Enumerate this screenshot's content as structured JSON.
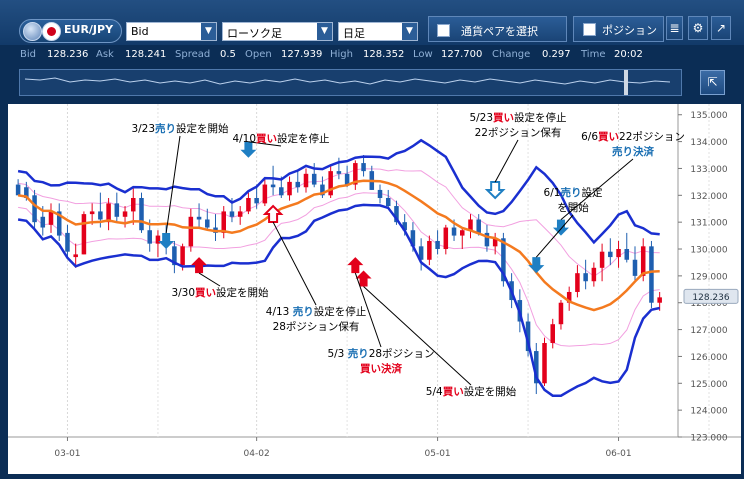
{
  "toolbar": {
    "pair": "EUR/JPY",
    "price_type": "Bid",
    "chart_kind": "ローソク足",
    "period": "日足",
    "select_pair_label": "通貨ペアを選択",
    "position_label": "ポジション"
  },
  "quotes": {
    "bid_label": "Bid",
    "bid": "128.236",
    "ask_label": "Ask",
    "ask": "128.241",
    "spread_label": "Spread",
    "spread": "0.5",
    "open_label": "Open",
    "open": "127.939",
    "high_label": "High",
    "high": "128.352",
    "low_label": "Low",
    "low": "127.700",
    "change_label": "Change",
    "change": "0.297",
    "time_label": "Time",
    "time": "20:02"
  },
  "chart_data": {
    "type": "candlestick",
    "y_ticks": [
      "135.000",
      "134.000",
      "133.000",
      "132.000",
      "131.000",
      "130.000",
      "129.000",
      "128.000",
      "127.000",
      "126.000",
      "125.000",
      "124.000",
      "123.000"
    ],
    "ylim": [
      123,
      135.4
    ],
    "x_ticks": [
      {
        "label": "03-01",
        "i": 6
      },
      {
        "label": "04-02",
        "i": 29
      },
      {
        "label": "05-01",
        "i": 51
      },
      {
        "label": "06-01",
        "i": 73
      }
    ],
    "current_price": "128.236",
    "candles": [
      [
        132.4,
        132.6,
        132.1,
        132.0
      ],
      [
        132.3,
        132.5,
        131.8,
        131.9
      ],
      [
        132.0,
        132.2,
        130.7,
        131.0
      ],
      [
        131.2,
        131.6,
        130.5,
        130.8
      ],
      [
        130.9,
        131.7,
        130.6,
        131.4
      ],
      [
        131.4,
        131.7,
        130.3,
        130.5
      ],
      [
        130.6,
        130.9,
        129.7,
        129.9
      ],
      [
        129.7,
        130.2,
        129.3,
        129.8
      ],
      [
        129.8,
        131.4,
        129.8,
        131.3
      ],
      [
        131.3,
        131.7,
        130.9,
        131.4
      ],
      [
        131.4,
        132.1,
        130.8,
        131.1
      ],
      [
        131.0,
        131.9,
        130.7,
        131.7
      ],
      [
        131.7,
        132.1,
        131.0,
        131.2
      ],
      [
        131.2,
        131.6,
        130.8,
        131.4
      ],
      [
        131.4,
        132.3,
        130.9,
        131.9
      ],
      [
        131.9,
        132.1,
        130.6,
        130.7
      ],
      [
        130.7,
        131.1,
        129.9,
        130.2
      ],
      [
        130.2,
        130.7,
        129.7,
        130.5
      ],
      [
        130.4,
        130.9,
        129.8,
        130.1
      ],
      [
        130.1,
        130.3,
        129.1,
        129.4
      ],
      [
        129.4,
        130.2,
        129.2,
        130.1
      ],
      [
        130.1,
        131.5,
        129.9,
        131.2
      ],
      [
        131.2,
        131.7,
        130.8,
        131.1
      ],
      [
        131.1,
        131.5,
        130.7,
        130.8
      ],
      [
        130.8,
        131.3,
        130.3,
        130.6
      ],
      [
        130.6,
        131.6,
        130.4,
        131.4
      ],
      [
        131.4,
        131.9,
        131.0,
        131.2
      ],
      [
        131.2,
        131.6,
        130.9,
        131.4
      ],
      [
        131.4,
        132.1,
        131.3,
        131.9
      ],
      [
        131.9,
        132.4,
        131.5,
        131.7
      ],
      [
        131.7,
        132.6,
        131.6,
        132.4
      ],
      [
        132.4,
        133.1,
        132.0,
        132.3
      ],
      [
        132.3,
        132.7,
        131.9,
        132.0
      ],
      [
        132.0,
        132.7,
        131.8,
        132.5
      ],
      [
        132.5,
        132.9,
        132.1,
        132.3
      ],
      [
        132.3,
        133.0,
        132.1,
        132.8
      ],
      [
        132.8,
        133.2,
        132.3,
        132.4
      ],
      [
        132.4,
        132.7,
        131.9,
        132.0
      ],
      [
        132.0,
        133.1,
        131.9,
        132.9
      ],
      [
        132.9,
        133.4,
        132.6,
        132.8
      ],
      [
        132.8,
        133.1,
        132.3,
        132.4
      ],
      [
        132.4,
        133.3,
        132.2,
        133.2
      ],
      [
        133.2,
        133.5,
        132.7,
        132.9
      ],
      [
        132.9,
        133.1,
        132.2,
        132.2
      ],
      [
        132.2,
        132.4,
        131.7,
        131.9
      ],
      [
        131.9,
        132.2,
        131.5,
        131.6
      ],
      [
        131.6,
        131.8,
        130.9,
        131.0
      ],
      [
        131.0,
        131.3,
        130.5,
        130.7
      ],
      [
        130.7,
        131.0,
        129.9,
        130.1
      ],
      [
        130.1,
        130.4,
        129.2,
        129.6
      ],
      [
        129.6,
        130.5,
        129.4,
        130.3
      ],
      [
        130.3,
        130.7,
        129.8,
        130.0
      ],
      [
        130.0,
        130.9,
        129.8,
        130.8
      ],
      [
        130.8,
        131.1,
        130.3,
        130.5
      ],
      [
        130.5,
        130.8,
        130.0,
        130.7
      ],
      [
        130.7,
        131.3,
        130.4,
        131.1
      ],
      [
        131.1,
        131.3,
        130.5,
        130.6
      ],
      [
        130.6,
        130.9,
        129.9,
        130.1
      ],
      [
        130.1,
        130.6,
        129.8,
        130.4
      ],
      [
        130.4,
        130.6,
        128.6,
        128.8
      ],
      [
        128.8,
        129.1,
        127.8,
        128.1
      ],
      [
        128.1,
        128.5,
        126.9,
        127.3
      ],
      [
        127.3,
        127.6,
        126.0,
        126.2
      ],
      [
        126.2,
        126.5,
        124.6,
        125.0
      ],
      [
        125.0,
        126.7,
        124.9,
        126.5
      ],
      [
        126.5,
        127.4,
        126.3,
        127.2
      ],
      [
        127.2,
        128.1,
        127.0,
        128.0
      ],
      [
        128.0,
        128.6,
        127.7,
        128.4
      ],
      [
        128.4,
        129.4,
        128.2,
        129.1
      ],
      [
        129.1,
        129.6,
        128.5,
        128.8
      ],
      [
        128.8,
        129.5,
        128.6,
        129.3
      ],
      [
        129.3,
        130.2,
        128.8,
        129.9
      ],
      [
        129.9,
        130.4,
        129.4,
        129.7
      ],
      [
        129.7,
        130.3,
        129.3,
        130.0
      ],
      [
        130.0,
        130.6,
        129.5,
        129.6
      ],
      [
        129.6,
        130.1,
        128.8,
        129.0
      ],
      [
        129.0,
        130.4,
        128.8,
        130.1
      ],
      [
        130.1,
        130.3,
        127.8,
        128.0
      ],
      [
        128.0,
        128.4,
        127.7,
        128.2
      ]
    ],
    "annotations": [
      {
        "lines": [
          [
            {
              "t": "3/23",
              "c": "#000"
            },
            {
              "t": "売り",
              "c": "#1a6fb3"
            },
            {
              "t": "設定を開始",
              "c": "#000"
            }
          ]
        ],
        "x": 172,
        "y": 28
      },
      {
        "lines": [
          [
            {
              "t": "4/10",
              "c": "#000"
            },
            {
              "t": "買い",
              "c": "#e3001b"
            },
            {
              "t": "設定を停止",
              "c": "#000"
            }
          ]
        ],
        "x": 273,
        "y": 38
      },
      {
        "lines": [
          [
            {
              "t": "5/23",
              "c": "#000"
            },
            {
              "t": "買い",
              "c": "#e3001b"
            },
            {
              "t": "設定を停止",
              "c": "#000"
            }
          ],
          [
            {
              "t": "22ポジション保有",
              "c": "#000"
            }
          ]
        ],
        "x": 510,
        "y": 17
      },
      {
        "lines": [
          [
            {
              "t": "6/6",
              "c": "#000"
            },
            {
              "t": "買い",
              "c": "#e3001b"
            },
            {
              "t": "22ポジション",
              "c": "#000"
            }
          ],
          [
            {
              "t": "売り決済",
              "c": "#1a6fb3"
            }
          ]
        ],
        "x": 625,
        "y": 36
      },
      {
        "lines": [
          [
            {
              "t": "6/1",
              "c": "#000"
            },
            {
              "t": "売り",
              "c": "#1a6fb3"
            },
            {
              "t": "設定",
              "c": "#000"
            }
          ],
          [
            {
              "t": "を開始",
              "c": "#000"
            }
          ]
        ],
        "x": 565,
        "y": 92
      },
      {
        "lines": [
          [
            {
              "t": "3/30",
              "c": "#000"
            },
            {
              "t": "買い",
              "c": "#e3001b"
            },
            {
              "t": "設定を開始",
              "c": "#000"
            }
          ]
        ],
        "x": 212,
        "y": 192
      },
      {
        "lines": [
          [
            {
              "t": "4/13 ",
              "c": "#000"
            },
            {
              "t": "売り",
              "c": "#1a6fb3"
            },
            {
              "t": "設定を停止",
              "c": "#000"
            }
          ],
          [
            {
              "t": "28ポジション保有",
              "c": "#000"
            }
          ]
        ],
        "x": 308,
        "y": 211
      },
      {
        "lines": [
          [
            {
              "t": "5/3 ",
              "c": "#000"
            },
            {
              "t": "売り",
              "c": "#1a6fb3"
            },
            {
              "t": "28ポジション",
              "c": "#000"
            }
          ],
          [
            {
              "t": "買い決済",
              "c": "#e3001b"
            }
          ]
        ],
        "x": 373,
        "y": 253
      },
      {
        "lines": [
          [
            {
              "t": "5/4",
              "c": "#000"
            },
            {
              "t": "買い",
              "c": "#e3001b"
            },
            {
              "t": "設定を開始",
              "c": "#000"
            }
          ]
        ],
        "x": 463,
        "y": 291
      }
    ],
    "markers": [
      {
        "type": "sell",
        "i": 18,
        "price": 130.0,
        "label_x": 172,
        "label_y": 28
      },
      {
        "type": "buy",
        "i": 22,
        "price": 129.7
      },
      {
        "type": "sell",
        "i": 28,
        "price": 133.4
      },
      {
        "type": "buy_outline",
        "i": 31,
        "price": 131.6
      },
      {
        "type": "buy",
        "i": 41,
        "price": 129.7
      },
      {
        "type": "buy",
        "i": 42,
        "price": 129.2
      },
      {
        "type": "sell_outline",
        "i": 58,
        "price": 131.9
      },
      {
        "type": "sell",
        "i": 63,
        "price": 129.1
      },
      {
        "type": "sell",
        "i": 66,
        "price": 130.5
      }
    ]
  }
}
